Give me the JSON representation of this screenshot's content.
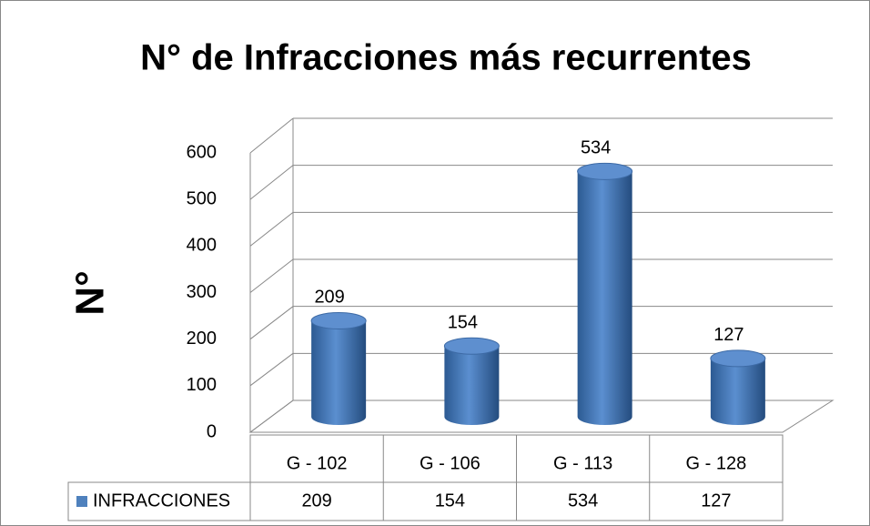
{
  "chart_data": {
    "type": "bar",
    "title": "N° de Infracciones más recurrentes",
    "y_label": "N°",
    "categories": [
      "G - 102",
      "G - 106",
      "G - 113",
      "G - 128"
    ],
    "series": [
      {
        "name": "INFRACCIONES",
        "color": "#4f81bd",
        "values": [
          209,
          154,
          534,
          127
        ]
      }
    ],
    "ylim": [
      0,
      600
    ],
    "yticks": [
      0,
      100,
      200,
      300,
      400,
      500,
      600
    ],
    "grid": true,
    "legend": "bottom-left"
  }
}
